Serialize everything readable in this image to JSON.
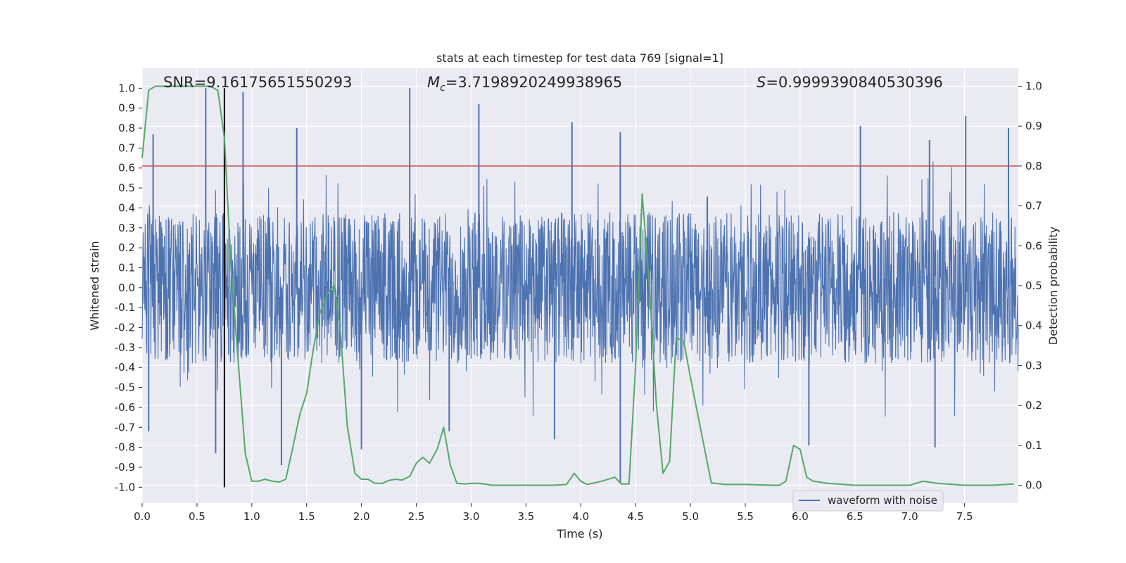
{
  "chart_data": {
    "type": "line",
    "title": "stats at each timestep for test data 769 [signal=1]",
    "xlabel": "Time (s)",
    "ylabel": "Whitened strain",
    "y2label": "Detection probability",
    "xlim": [
      0,
      7.99
    ],
    "ylim": [
      -1.08,
      1.1
    ],
    "y2lim": [
      -0.045,
      1.045
    ],
    "x_ticks": [
      "0.0",
      "0.5",
      "1.0",
      "1.5",
      "2.0",
      "2.5",
      "3.0",
      "3.5",
      "4.0",
      "4.5",
      "5.0",
      "5.5",
      "6.0",
      "6.5",
      "7.0",
      "7.5"
    ],
    "y_ticks": [
      "1.0",
      "0.9",
      "0.8",
      "0.7",
      "0.6",
      "0.5",
      "0.4",
      "0.3",
      "0.2",
      "0.1",
      "0.0",
      "-0.1",
      "-0.2",
      "-0.3",
      "-0.4",
      "-0.5",
      "-0.6",
      "-0.7",
      "-0.8",
      "-0.9",
      "-1.0"
    ],
    "y2_ticks": [
      "1.0",
      "0.9",
      "0.8",
      "0.7",
      "0.6",
      "0.5",
      "0.4",
      "0.3",
      "0.2",
      "0.1",
      "0.0"
    ],
    "grid": true,
    "legend_position": "lower-right",
    "annotations": {
      "snr": "SNR=9.16175651550293",
      "mc_symbol": "M",
      "mc_sub": "c",
      "mc_value": "=3.7198920249938965",
      "s_symbol": "S",
      "s_value": "=0.9999390840530396"
    },
    "threshold_line": {
      "y2": 0.8,
      "color": "#c44e52"
    },
    "vertical_line": {
      "x": 0.75,
      "color": "#000000"
    },
    "series": [
      {
        "name": "waveform with noise",
        "axis": "left",
        "color": "#4c72b0",
        "description_type": "dense noisy waveform",
        "x_range": [
          0,
          7.99
        ],
        "typical_amplitude": 0.38,
        "peak_highs": [
          [
            0.58,
            1.0
          ],
          [
            0.92,
            0.98
          ],
          [
            2.44,
            1.0
          ],
          [
            3.07,
            0.92
          ],
          [
            3.92,
            0.83
          ],
          [
            4.36,
            0.78
          ],
          [
            6.55,
            0.81
          ],
          [
            7.18,
            0.74
          ],
          [
            7.51,
            0.86
          ],
          [
            7.9,
            0.8
          ],
          [
            1.41,
            0.8
          ],
          [
            0.1,
            0.77
          ]
        ],
        "peak_lows": [
          [
            4.36,
            -0.98
          ],
          [
            1.27,
            -0.89
          ],
          [
            0.67,
            -0.83
          ],
          [
            7.23,
            -0.8
          ],
          [
            6.08,
            -0.79
          ],
          [
            3.76,
            -0.76
          ],
          [
            0.06,
            -0.72
          ],
          [
            2.0,
            -0.81
          ],
          [
            2.8,
            -0.72
          ]
        ]
      },
      {
        "name": "",
        "axis": "right",
        "color": "#55a868",
        "x": [
          0.0,
          0.06,
          0.12,
          0.19,
          0.25,
          0.31,
          0.38,
          0.44,
          0.5,
          0.56,
          0.62,
          0.69,
          0.75,
          0.81,
          0.87,
          0.94,
          1.0,
          1.06,
          1.12,
          1.19,
          1.25,
          1.31,
          1.37,
          1.44,
          1.5,
          1.56,
          1.62,
          1.69,
          1.75,
          1.81,
          1.87,
          1.94,
          2.0,
          2.06,
          2.12,
          2.19,
          2.25,
          2.31,
          2.37,
          2.44,
          2.5,
          2.56,
          2.62,
          2.69,
          2.75,
          2.81,
          2.87,
          2.94,
          3.0,
          3.06,
          3.12,
          3.19,
          3.25,
          3.5,
          3.75,
          3.87,
          3.94,
          4.0,
          4.06,
          4.19,
          4.31,
          4.37,
          4.44,
          4.5,
          4.56,
          4.62,
          4.69,
          4.75,
          4.81,
          4.87,
          4.94,
          5.0,
          5.19,
          5.31,
          5.5,
          5.75,
          5.81,
          5.87,
          5.94,
          6.0,
          6.06,
          6.12,
          6.25,
          6.5,
          6.75,
          6.87,
          7.0,
          7.12,
          7.25,
          7.5,
          7.75,
          7.95
        ],
        "y": [
          0.82,
          0.99,
          1.0,
          1.0,
          1.0,
          1.0,
          1.0,
          1.0,
          1.0,
          1.0,
          1.0,
          0.99,
          0.87,
          0.55,
          0.33,
          0.08,
          0.01,
          0.01,
          0.015,
          0.01,
          0.008,
          0.015,
          0.09,
          0.18,
          0.23,
          0.34,
          0.43,
          0.48,
          0.5,
          0.38,
          0.15,
          0.03,
          0.015,
          0.015,
          0.005,
          0.005,
          0.012,
          0.015,
          0.013,
          0.022,
          0.055,
          0.07,
          0.055,
          0.09,
          0.145,
          0.05,
          0.005,
          0.003,
          0.005,
          0.005,
          0.003,
          0.0,
          0.0,
          0.0,
          0.0,
          0.002,
          0.03,
          0.01,
          0.002,
          0.01,
          0.02,
          0.003,
          0.003,
          0.3,
          0.73,
          0.52,
          0.2,
          0.03,
          0.06,
          0.37,
          0.36,
          0.27,
          0.006,
          0.002,
          0.002,
          0.0,
          0.0,
          0.01,
          0.1,
          0.09,
          0.02,
          0.01,
          0.005,
          0.0,
          0.0,
          0.0,
          0.0,
          0.01,
          0.005,
          0.0,
          0.0,
          0.003
        ]
      }
    ]
  }
}
